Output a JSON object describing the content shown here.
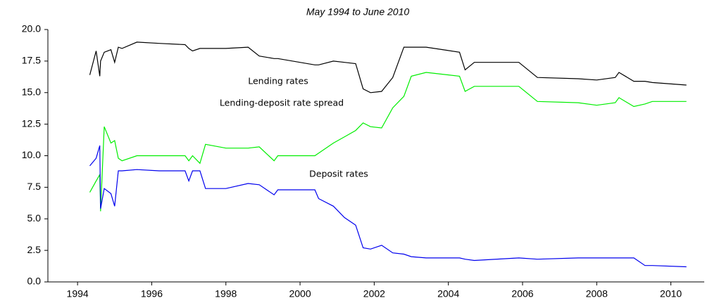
{
  "chart_data": {
    "type": "line",
    "title": "May 1994 to June 2010",
    "x": [
      1994.33,
      1994.5,
      1994.6,
      1994.62,
      1994.72,
      1994.9,
      1995.0,
      1995.1,
      1995.2,
      1995.6,
      1996.2,
      1996.9,
      1997.0,
      1997.1,
      1997.3,
      1997.45,
      1998.0,
      1998.6,
      1998.9,
      1999.3,
      1999.4,
      2000.4,
      2000.5,
      2000.9,
      2001.2,
      2001.5,
      2001.7,
      2001.9,
      2002.2,
      2002.5,
      2002.8,
      2003.0,
      2003.4,
      2004.3,
      2004.45,
      2004.7,
      2005.9,
      2006.4,
      2007.5,
      2008.0,
      2008.5,
      2008.6,
      2009.0,
      2009.3,
      2009.5,
      2010.42
    ],
    "series": [
      {
        "name": "Lending rates",
        "color": "#000000",
        "values": [
          16.4,
          18.3,
          16.3,
          17.5,
          18.2,
          18.4,
          17.4,
          18.6,
          18.5,
          19.0,
          18.9,
          18.8,
          18.5,
          18.3,
          18.5,
          18.5,
          18.5,
          18.6,
          17.9,
          17.7,
          17.7,
          17.2,
          17.2,
          17.5,
          17.4,
          17.3,
          15.3,
          15.0,
          15.1,
          16.2,
          18.6,
          18.6,
          18.6,
          18.2,
          16.8,
          17.4,
          17.4,
          16.2,
          16.1,
          16.0,
          16.2,
          16.6,
          15.9,
          15.9,
          15.8,
          15.6
        ]
      },
      {
        "name": "Lending-deposit rate spread",
        "color": "#00ee00",
        "values": [
          7.1,
          8.0,
          8.5,
          5.6,
          12.3,
          11.0,
          11.2,
          9.8,
          9.6,
          10.0,
          10.0,
          10.0,
          9.6,
          10.0,
          9.4,
          10.9,
          10.6,
          10.6,
          10.7,
          9.6,
          10.0,
          10.0,
          10.2,
          11.0,
          11.5,
          12.0,
          12.6,
          12.3,
          12.2,
          13.8,
          14.7,
          16.3,
          16.6,
          16.3,
          15.1,
          15.5,
          15.5,
          14.3,
          14.2,
          14.0,
          14.2,
          14.6,
          13.9,
          14.1,
          14.3,
          14.3
        ]
      },
      {
        "name": "Deposit rates",
        "color": "#0000ee",
        "values": [
          9.2,
          9.8,
          10.8,
          5.8,
          7.4,
          7.0,
          6.0,
          8.8,
          8.8,
          8.9,
          8.8,
          8.8,
          8.0,
          8.8,
          8.8,
          7.4,
          7.4,
          7.8,
          7.7,
          6.9,
          7.3,
          7.3,
          6.6,
          6.0,
          5.1,
          4.5,
          2.7,
          2.6,
          2.9,
          2.3,
          2.2,
          2.0,
          1.9,
          1.9,
          1.8,
          1.7,
          1.9,
          1.8,
          1.9,
          1.9,
          1.9,
          1.9,
          1.9,
          1.3,
          1.3,
          1.2
        ]
      }
    ],
    "xlim": [
      1993.2,
      2010.9
    ],
    "xticks": [
      1994,
      1996,
      1998,
      2000,
      2002,
      2004,
      2006,
      2008,
      2010
    ],
    "ylim": [
      0,
      20
    ],
    "yticks": [
      {
        "value": 0,
        "label": "0.0"
      },
      {
        "value": 2.5,
        "label": "2.5"
      },
      {
        "value": 5,
        "label": "5.0"
      },
      {
        "value": 7.5,
        "label": "7.5"
      },
      {
        "value": 10,
        "label": "10.0"
      },
      {
        "value": 12.5,
        "label": "12.5"
      },
      {
        "value": 15,
        "label": "15.0"
      },
      {
        "value": 17.5,
        "label": "17.5"
      },
      {
        "value": 20,
        "label": "20.0"
      }
    ],
    "grid": false
  }
}
